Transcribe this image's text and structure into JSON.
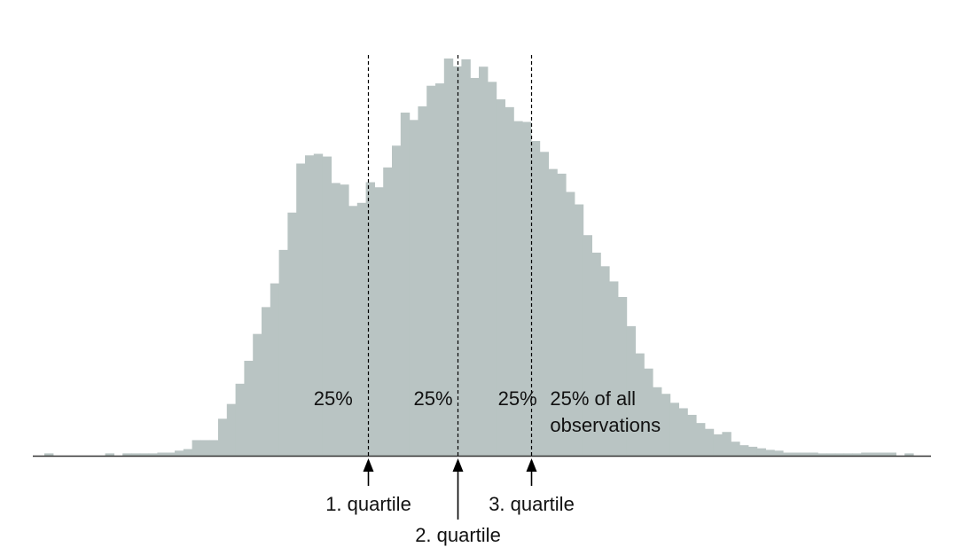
{
  "chart_data": {
    "type": "bar",
    "title": "",
    "xlabel": "",
    "ylabel": "",
    "bar_color": "#b9c4c3",
    "axis_color": "#333333",
    "values": [
      0.6,
      0.0,
      0.0,
      0.0,
      0.0,
      0.0,
      0.0,
      0.6,
      0.0,
      0.6,
      0.6,
      0.6,
      0.6,
      0.8,
      0.8,
      1.3,
      1.7,
      4.0,
      4.0,
      4.0,
      9.5,
      13.3,
      18.5,
      24.4,
      31.3,
      38.2,
      44.3,
      52.9,
      62.5,
      75.1,
      77.2,
      77.6,
      76.9,
      70.1,
      69.7,
      64.2,
      65.0,
      70.3,
      69.0,
      74.1,
      79.7,
      88.2,
      86.3,
      89.8,
      95.1,
      95.7,
      102.1,
      100.1,
      101.9,
      97.1,
      100.0,
      96.1,
      91.6,
      89.6,
      86.0,
      85.8,
      80.9,
      78.1,
      73.7,
      72.5,
      67.8,
      64.6,
      56.7,
      52.2,
      48.7,
      44.8,
      40.8,
      33.3,
      26.3,
      22.4,
      17.6,
      15.9,
      13.6,
      12.2,
      10.5,
      8.4,
      6.9,
      5.5,
      6.1,
      3.6,
      2.7,
      2.3,
      1.9,
      1.5,
      1.3,
      0.8,
      0.8,
      0.8,
      0.8,
      0.6,
      0.6,
      0.6,
      0.6,
      0.6,
      0.8,
      0.8,
      0.8,
      0.8,
      0.0,
      0.6
    ],
    "quartiles": [
      {
        "position": 0.3725,
        "label": "1. quartile",
        "label_row": 1
      },
      {
        "position": 0.475,
        "label": "2. quartile",
        "label_row": 2
      },
      {
        "position": 0.56,
        "label": "3. quartile",
        "label_row": 1
      }
    ],
    "annotations": [
      {
        "text": "25%",
        "x": 0.31
      },
      {
        "text": "25%",
        "x": 0.425
      },
      {
        "text": "25%",
        "x": 0.522
      },
      {
        "text": "25% of all",
        "x": 0.582,
        "line2": "observations"
      }
    ]
  }
}
